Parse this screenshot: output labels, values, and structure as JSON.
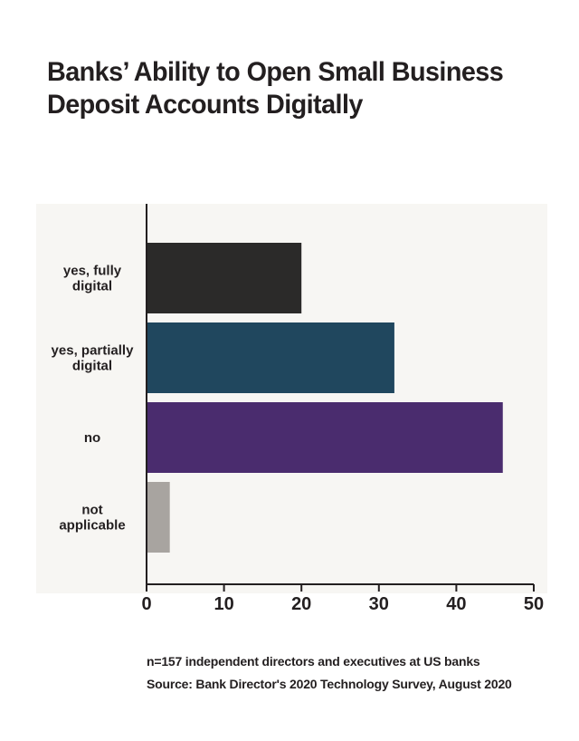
{
  "title_lines": [
    "Banks’ Ability to Open Small Business",
    "Deposit Accounts Digitally"
  ],
  "chart_data": {
    "type": "bar",
    "orientation": "horizontal",
    "title": "Banks’ Ability to Open Small Business Deposit Accounts Digitally",
    "categories": [
      [
        "yes, fully",
        "digital"
      ],
      [
        "yes, partially",
        "digital"
      ],
      [
        "no"
      ],
      [
        "not",
        "applicable"
      ]
    ],
    "values": [
      20,
      32,
      46,
      3
    ],
    "colors": [
      "#2b2a29",
      "#20475e",
      "#4a2c6e",
      "#a8a4a0"
    ],
    "xlim": [
      0,
      50
    ],
    "xticks": [
      "0",
      "10",
      "20",
      "30",
      "40",
      "50"
    ],
    "xlabel": "",
    "ylabel": "",
    "grid": false,
    "legend": "none"
  },
  "notes": {
    "sample": "n=157 independent directors and executives at US banks",
    "source": "Source: Bank Director's 2020 Technology Survey, August 2020"
  }
}
